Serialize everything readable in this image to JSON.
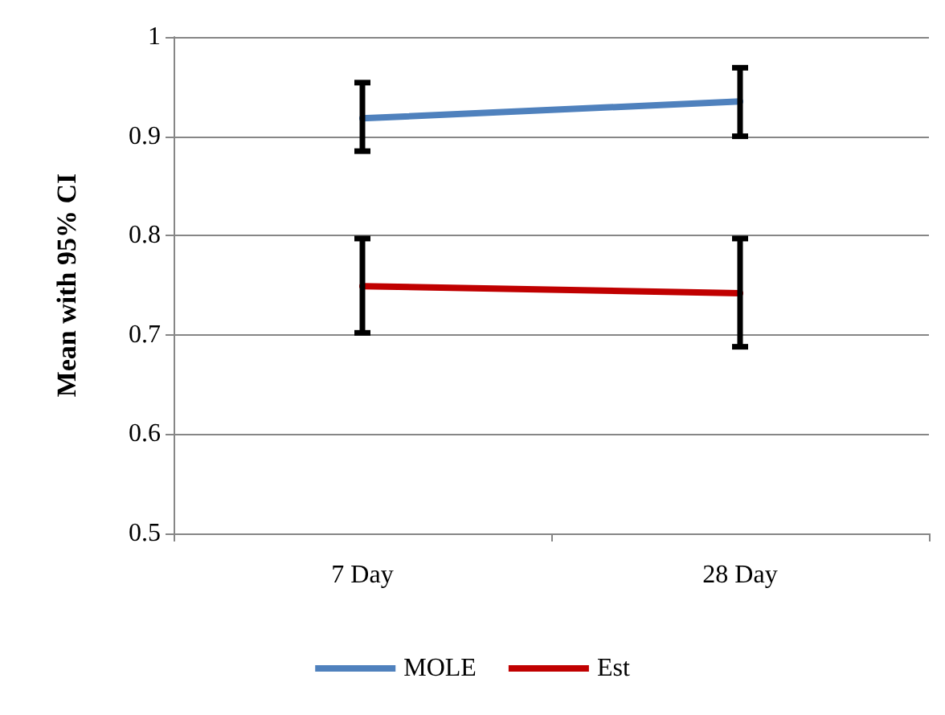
{
  "chart_data": {
    "type": "line",
    "ylabel": "Mean with 95% CI",
    "categories": [
      "7 Day",
      "28 Day"
    ],
    "series": [
      {
        "name": "MOLE",
        "color": "#4f81bd",
        "values": [
          0.918,
          0.935
        ],
        "errors": [
          [
            0.885,
            0.954
          ],
          [
            0.9,
            0.969
          ]
        ]
      },
      {
        "name": "Est",
        "color": "#c00000",
        "values": [
          0.749,
          0.742
        ],
        "errors": [
          [
            0.702,
            0.797
          ],
          [
            0.688,
            0.797
          ]
        ]
      }
    ],
    "ylim": [
      0.5,
      1
    ],
    "yticks": [
      0.5,
      0.6,
      0.7,
      0.8,
      0.9,
      1
    ],
    "grid": "y",
    "legend": "bottom",
    "marker": "none",
    "line_style": "solid"
  }
}
